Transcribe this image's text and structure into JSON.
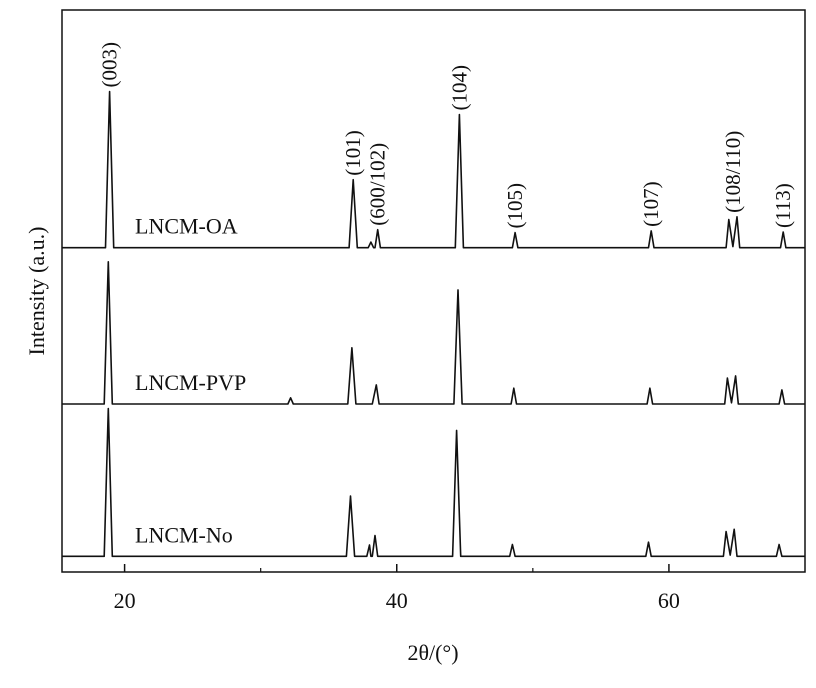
{
  "chart_data": {
    "type": "line",
    "xlabel": "2θ/(°)",
    "ylabel": "Intensity (a.u.)",
    "xlim": [
      15.4,
      70
    ],
    "ylim": [
      0,
      100
    ],
    "xticks": [
      20,
      40,
      60
    ],
    "xticks_minor": [
      30,
      50
    ],
    "series": [
      {
        "name": "LNCM-OA",
        "color": "#111111",
        "x": [
          15.4,
          18.6,
          18.9,
          19.2,
          36.5,
          36.8,
          37.1,
          37.9,
          38.1,
          38.3,
          38.4,
          38.6,
          38.8,
          44.3,
          44.6,
          44.9,
          48.5,
          48.7,
          48.9,
          58.5,
          58.7,
          58.9,
          64.2,
          64.4,
          64.7,
          65.0,
          65.2,
          68.2,
          68.4,
          68.6,
          70
        ],
        "values": [
          57.7,
          57.7,
          85.5,
          57.7,
          57.7,
          69.8,
          57.7,
          57.7,
          58.7,
          57.7,
          57.7,
          60.9,
          57.7,
          57.7,
          81.4,
          57.7,
          57.7,
          60.4,
          57.7,
          57.7,
          60.7,
          57.7,
          57.7,
          62.7,
          57.9,
          63.2,
          57.7,
          57.7,
          60.5,
          57.7,
          57.7
        ]
      },
      {
        "name": "LNCM-PVP",
        "color": "#111111",
        "x": [
          15.4,
          18.5,
          18.8,
          19.1,
          32.0,
          32.2,
          32.4,
          36.4,
          36.7,
          37.0,
          38.2,
          38.5,
          38.7,
          44.2,
          44.5,
          44.8,
          48.4,
          48.6,
          48.8,
          58.4,
          58.6,
          58.8,
          64.1,
          64.3,
          64.6,
          64.9,
          65.1,
          68.1,
          68.3,
          68.5,
          70
        ],
        "values": [
          29.9,
          29.9,
          55.2,
          29.9,
          29.9,
          31.0,
          29.9,
          29.9,
          39.9,
          29.9,
          29.9,
          33.3,
          29.9,
          29.9,
          50.2,
          29.9,
          29.9,
          32.7,
          29.9,
          29.9,
          32.7,
          29.9,
          29.9,
          34.5,
          30.1,
          34.9,
          29.9,
          29.9,
          32.4,
          29.9,
          29.9
        ]
      },
      {
        "name": "LNCM-No",
        "color": "#111111",
        "x": [
          15.4,
          18.5,
          18.8,
          19.1,
          36.3,
          36.6,
          36.9,
          37.8,
          38.0,
          38.1,
          38.2,
          38.4,
          38.6,
          44.1,
          44.4,
          44.7,
          48.3,
          48.5,
          48.7,
          58.3,
          58.5,
          58.7,
          64.0,
          64.2,
          64.5,
          64.8,
          65.0,
          67.9,
          68.1,
          68.3,
          70
        ],
        "values": [
          2.8,
          2.8,
          29.1,
          2.8,
          2.8,
          13.5,
          2.8,
          2.8,
          4.8,
          2.8,
          2.8,
          6.5,
          2.8,
          2.8,
          25.2,
          2.8,
          2.8,
          4.9,
          2.8,
          2.8,
          5.3,
          2.8,
          2.8,
          7.2,
          3.0,
          7.6,
          2.8,
          2.8,
          4.9,
          2.8,
          2.8
        ]
      }
    ],
    "annotations": [
      {
        "text": "(003)",
        "x": 18.9
      },
      {
        "text": "(101)",
        "x": 36.8
      },
      {
        "text": "(600/102)",
        "x": 38.6
      },
      {
        "text": "(104)",
        "x": 44.6
      },
      {
        "text": "(105)",
        "x": 48.7
      },
      {
        "text": "(107)",
        "x": 58.7
      },
      {
        "text": "(108/110)",
        "x": 64.7
      },
      {
        "text": "(113)",
        "x": 68.4
      }
    ]
  }
}
